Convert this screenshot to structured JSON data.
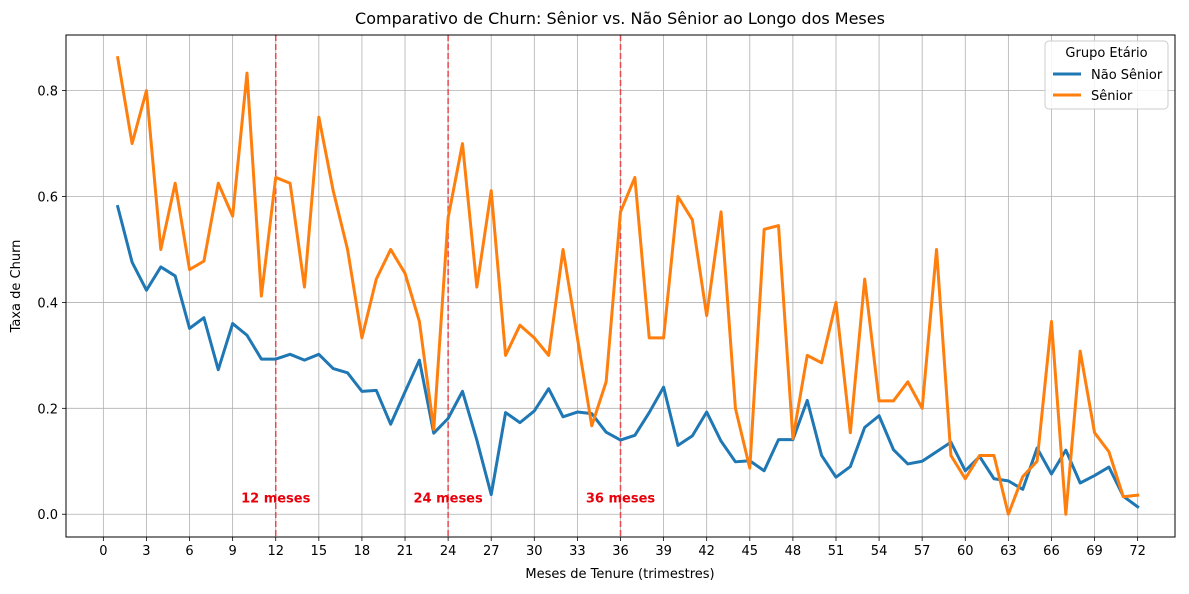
{
  "chart_data": {
    "type": "line",
    "title": "Comparativo de Churn: Sênior vs. Não Sênior ao Longo dos Meses",
    "xlabel": "Meses de Tenure (trimestres)",
    "ylabel": "Taxa de Churn",
    "xlim": [
      -2.6,
      74.6
    ],
    "ylim": [
      -0.043,
      0.905
    ],
    "xticks": [
      0,
      3,
      6,
      9,
      12,
      15,
      18,
      21,
      24,
      27,
      30,
      33,
      36,
      39,
      42,
      45,
      48,
      51,
      54,
      57,
      60,
      63,
      66,
      69,
      72
    ],
    "yticks": [
      0.0,
      0.2,
      0.4,
      0.6,
      0.8
    ],
    "grid": true,
    "legend": {
      "title": "Grupo Etário",
      "placement": "top-right"
    },
    "series": [
      {
        "name": "Não Sênior",
        "color": "#1f77b4",
        "x": [
          1,
          2,
          3,
          4,
          5,
          6,
          7,
          8,
          9,
          10,
          11,
          12,
          13,
          14,
          15,
          16,
          17,
          18,
          19,
          20,
          21,
          22,
          23,
          24,
          25,
          26,
          27,
          28,
          29,
          30,
          31,
          32,
          33,
          34,
          35,
          36,
          37,
          38,
          39,
          40,
          41,
          42,
          43,
          44,
          45,
          46,
          47,
          48,
          49,
          50,
          51,
          52,
          53,
          54,
          55,
          56,
          57,
          58,
          59,
          60,
          61,
          62,
          63,
          64,
          65,
          66,
          67,
          68,
          69,
          70,
          71,
          72
        ],
        "values": [
          0.581,
          0.476,
          0.423,
          0.467,
          0.45,
          0.351,
          0.371,
          0.273,
          0.36,
          0.338,
          0.293,
          0.293,
          0.302,
          0.291,
          0.302,
          0.275,
          0.267,
          0.232,
          0.234,
          0.17,
          0.231,
          0.291,
          0.153,
          0.181,
          0.232,
          0.14,
          0.037,
          0.192,
          0.173,
          0.195,
          0.237,
          0.184,
          0.193,
          0.19,
          0.155,
          0.14,
          0.149,
          0.192,
          0.24,
          0.13,
          0.148,
          0.193,
          0.138,
          0.099,
          0.101,
          0.082,
          0.141,
          0.141,
          0.215,
          0.111,
          0.07,
          0.09,
          0.164,
          0.186,
          0.122,
          0.095,
          0.1,
          0.118,
          0.136,
          0.082,
          0.109,
          0.067,
          0.063,
          0.047,
          0.125,
          0.076,
          0.121,
          0.059,
          0.073,
          0.089,
          0.034,
          0.014
        ]
      },
      {
        "name": "Sênior",
        "color": "#ff7f0e",
        "x": [
          1,
          2,
          3,
          4,
          5,
          6,
          7,
          8,
          9,
          10,
          11,
          12,
          13,
          14,
          15,
          16,
          17,
          18,
          19,
          20,
          21,
          22,
          23,
          24,
          25,
          26,
          27,
          28,
          29,
          30,
          31,
          32,
          33,
          34,
          35,
          36,
          37,
          38,
          39,
          40,
          41,
          42,
          43,
          44,
          45,
          46,
          47,
          48,
          49,
          50,
          51,
          52,
          53,
          54,
          55,
          56,
          57,
          58,
          59,
          60,
          61,
          62,
          63,
          64,
          65,
          66,
          67,
          68,
          69,
          70,
          71,
          72
        ],
        "values": [
          0.862,
          0.7,
          0.8,
          0.5,
          0.625,
          0.462,
          0.478,
          0.625,
          0.563,
          0.833,
          0.412,
          0.636,
          0.625,
          0.429,
          0.75,
          0.611,
          0.5,
          0.333,
          0.444,
          0.5,
          0.455,
          0.364,
          0.16,
          0.56,
          0.7,
          0.429,
          0.611,
          0.3,
          0.357,
          0.333,
          0.3,
          0.5,
          0.333,
          0.167,
          0.25,
          0.571,
          0.636,
          0.333,
          0.333,
          0.6,
          0.556,
          0.375,
          0.571,
          0.2,
          0.087,
          0.538,
          0.545,
          0.143,
          0.3,
          0.286,
          0.4,
          0.154,
          0.444,
          0.214,
          0.214,
          0.25,
          0.2,
          0.5,
          0.111,
          0.067,
          0.111,
          0.111,
          0.0,
          0.071,
          0.1,
          0.364,
          0.0,
          0.308,
          0.154,
          0.118,
          0.033,
          0.036
        ]
      }
    ],
    "vlines": [
      {
        "x": 12,
        "label": "12 meses"
      },
      {
        "x": 24,
        "label": "24 meses"
      },
      {
        "x": 36,
        "label": "36 meses"
      }
    ],
    "vline_color": "#e8494f",
    "annotation_color": "#e8000b"
  }
}
